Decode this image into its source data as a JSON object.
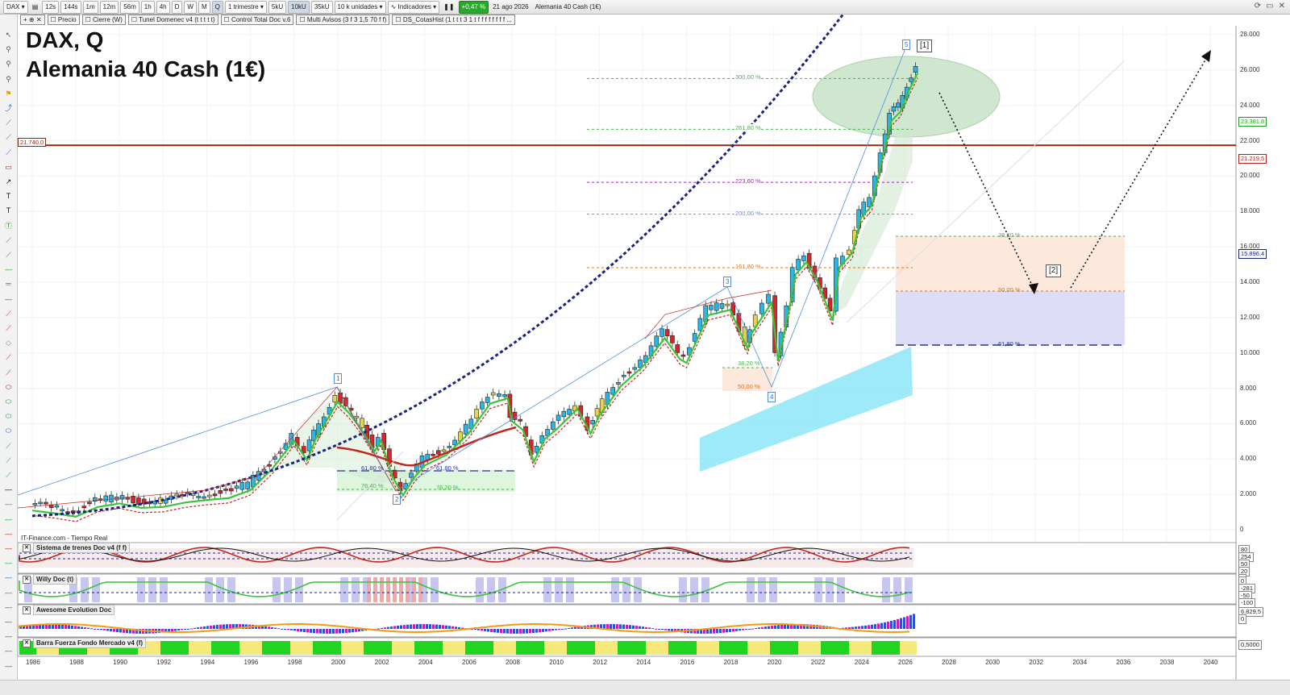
{
  "toolbar": {
    "symbol": "DAX",
    "intervals": [
      "12s",
      "144s",
      "1m",
      "12m",
      "56m",
      "1h",
      "4h",
      "D",
      "W",
      "M",
      "Q"
    ],
    "active_interval": "Q",
    "period": "1 trimestre",
    "units": [
      "5kU",
      "10kU",
      "35kU"
    ],
    "active_unit": "10kU",
    "unit_select": "10 k unidades",
    "indicators_label": "Indicadores",
    "change": "+0,47 %",
    "date": "21 ago 2026",
    "instrument": "Alemania 40 Cash (1€)"
  },
  "indicator_bar": [
    "Precio",
    "Cierre (W)",
    "Tunel Domenec v4 (t t t t t)",
    "Control Total Doc v.6",
    "Multi Avisos (3 f 3 1,5 70 f f)",
    "DS_CotasHist (1 t t t 3 1 t f f f f f f f f ..."
  ],
  "chart": {
    "title_line1": "DAX, Q",
    "title_line2": "Alemania 40 Cash (1€)",
    "source": "IT-Finance.com - Tiempo Real",
    "level_tag": "21.740,0",
    "y_ticks": [
      "28.000",
      "26.000",
      "24.000",
      "22.000",
      "20.000",
      "18.000",
      "16.000",
      "14.000",
      "12.000",
      "10.000",
      "8.000",
      "6.000",
      "4.000",
      "2.000",
      "0"
    ],
    "x_ticks": [
      "1986",
      "1988",
      "1990",
      "1992",
      "1994",
      "1996",
      "1998",
      "2000",
      "2002",
      "2004",
      "2006",
      "2008",
      "2010",
      "2012",
      "2014",
      "2016",
      "2018",
      "2020",
      "2022",
      "2024",
      "2026",
      "2028",
      "2030",
      "2032",
      "2034",
      "2036",
      "2038",
      "2040"
    ],
    "price_badges": [
      {
        "text": "23.381,8",
        "color": "#1e9e1e"
      },
      {
        "text": "21.219,5",
        "color": "#b0201a"
      },
      {
        "text": "15.896,4",
        "color": "#1a237e"
      }
    ],
    "fib_extensions": [
      "300,00 %",
      "261,80 %",
      "223,60 %",
      "200,00 %",
      "161,80 %"
    ],
    "fib_retracement": [
      "38,20 %",
      "50,00 %",
      "61,80 %"
    ],
    "fib_2000": [
      "61,80 %",
      "76,40 %",
      "61,80 %",
      "76,20 %"
    ],
    "fib_2020": [
      "38,20 %",
      "50,00 %"
    ],
    "waves": [
      "1",
      "2",
      "3",
      "4",
      "5"
    ],
    "wave_labels_big": [
      "[1]",
      "[2]"
    ]
  },
  "panels": [
    {
      "label": "Sistema de trenes Doc v4 (f f)",
      "badges": [
        "80",
        "254",
        "50",
        "20",
        "0"
      ]
    },
    {
      "label": "Willy Doc (t)",
      "badges": [
        "0",
        "-281",
        "-50",
        "-100"
      ]
    },
    {
      "label": "Awesome Evolution Doc",
      "badges": [
        "6.829,5",
        "0"
      ]
    },
    {
      "label": "Barra Fuerza Fondo Mercado v4 (f)",
      "badges": [
        "0,5000"
      ]
    }
  ],
  "colors": {
    "up_candle": "#2ab6e8",
    "down_candle": "#d7262b",
    "neutral_candle": "#e8d44a",
    "ma_green": "#3ac43a",
    "ma_red": "#c0281f",
    "ma_blue": "#1a237e",
    "resistance": "#8a2a10"
  }
}
